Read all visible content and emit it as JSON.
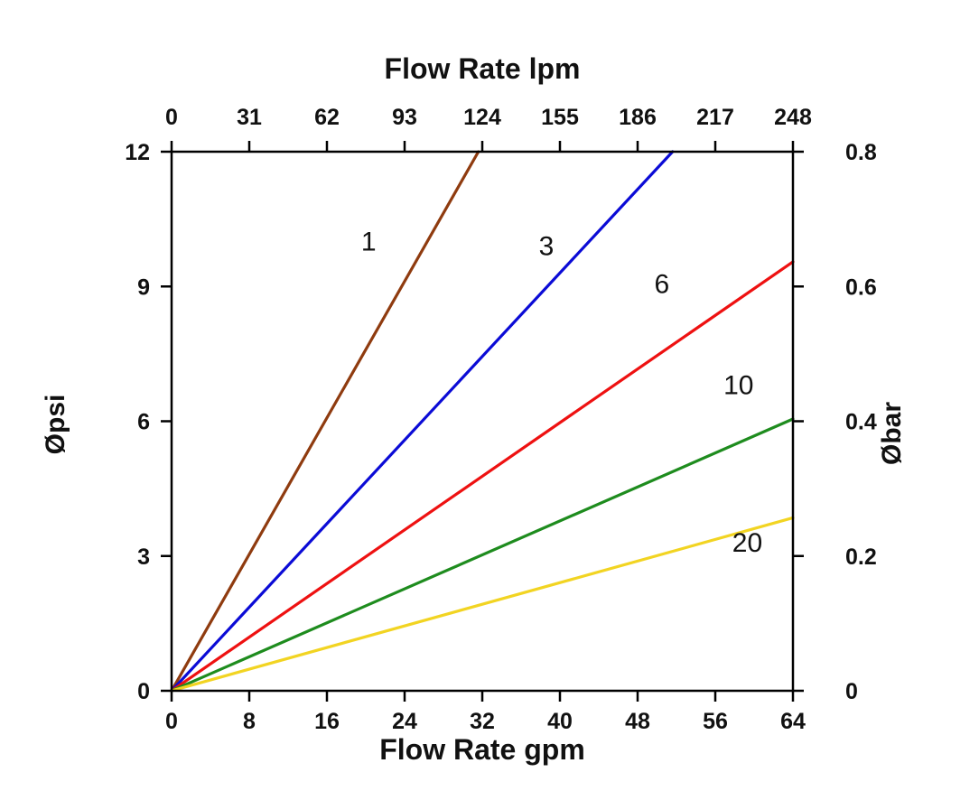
{
  "chart_data": {
    "type": "line",
    "title": "",
    "grid": false,
    "legend": "inline-labels",
    "top_axis": {
      "label": "Flow Rate lpm",
      "ticks": [
        0,
        31,
        62,
        93,
        124,
        155,
        186,
        217,
        248
      ],
      "range": [
        0,
        248
      ]
    },
    "bottom_axis": {
      "label": "Flow Rate gpm",
      "ticks": [
        0,
        8,
        16,
        24,
        32,
        40,
        48,
        56,
        64
      ],
      "range": [
        0,
        64
      ]
    },
    "left_axis": {
      "label": "Øpsi",
      "ticks": [
        0,
        3,
        6,
        9,
        12
      ],
      "range": [
        0,
        12
      ]
    },
    "right_axis": {
      "label": "Øbar",
      "ticks": [
        0,
        0.2,
        0.4,
        0.6,
        0.8
      ],
      "range": [
        0,
        0.8
      ]
    },
    "series": [
      {
        "name": "1",
        "color": "#8f3b0f",
        "points": [
          [
            0,
            0
          ],
          [
            31.6,
            12
          ]
        ],
        "label_at": [
          20.3,
          9.8
        ]
      },
      {
        "name": "3",
        "color": "#0b0bd6",
        "points": [
          [
            0,
            0
          ],
          [
            51.6,
            12
          ]
        ],
        "label_at": [
          38.6,
          9.7
        ]
      },
      {
        "name": "6",
        "color": "#ee1111",
        "points": [
          [
            0,
            0
          ],
          [
            64,
            9.55
          ]
        ],
        "label_at": [
          50.5,
          8.85
        ]
      },
      {
        "name": "10",
        "color": "#1e8c1e",
        "points": [
          [
            0,
            0
          ],
          [
            64,
            6.05
          ]
        ],
        "label_at": [
          58.4,
          6.6
        ]
      },
      {
        "name": "20",
        "color": "#f2d422",
        "points": [
          [
            0,
            0
          ],
          [
            64,
            3.85
          ]
        ],
        "label_at": [
          59.3,
          3.1
        ]
      }
    ]
  }
}
